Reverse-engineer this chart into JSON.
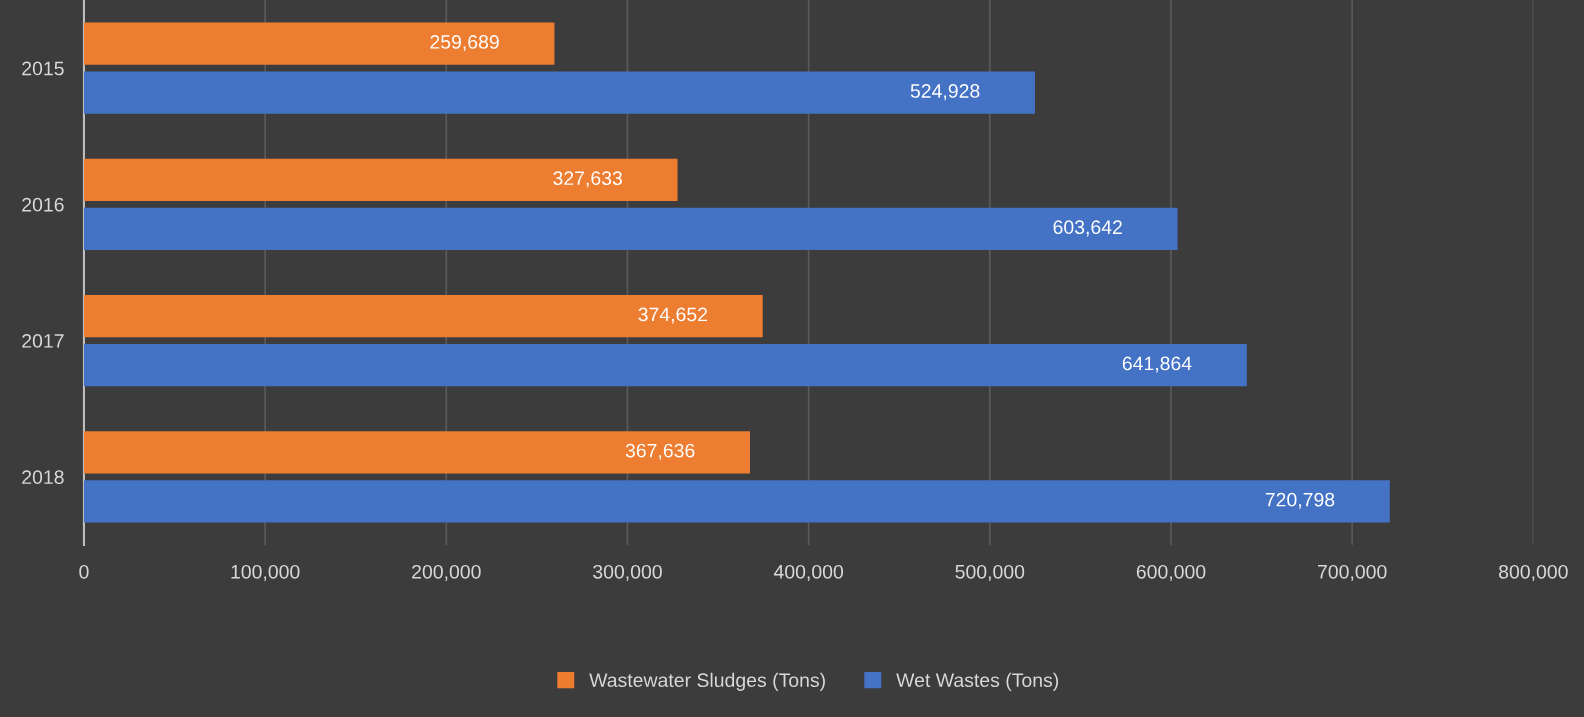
{
  "chart_data": {
    "type": "bar",
    "orientation": "horizontal",
    "categories": [
      "2015",
      "2016",
      "2017",
      "2018"
    ],
    "series": [
      {
        "name": "Wastewater Sludges (Tons)",
        "color": "#ed7d31",
        "values": [
          259689,
          327633,
          374652,
          367636
        ],
        "value_labels": [
          "259,689",
          "327,633",
          "374,652",
          "367,636"
        ]
      },
      {
        "name": "Wet Wastes (Tons)",
        "color": "#4472c4",
        "values": [
          524928,
          603642,
          641864,
          720798
        ],
        "value_labels": [
          "524,928",
          "603,642",
          "641,864",
          "720,798"
        ]
      }
    ],
    "xlim": [
      0,
      800000
    ],
    "xticks": [
      0,
      {
        "value": 100000,
        "label": "100,000"
      },
      {
        "value": 200000,
        "label": "200,000"
      },
      {
        "value": 300000,
        "label": "300,000"
      },
      {
        "value": 400000,
        "label": "400,000"
      },
      {
        "value": 500000,
        "label": "500,000"
      },
      {
        "value": 600000,
        "label": "600,000"
      },
      {
        "value": 700000,
        "label": "700,000"
      },
      {
        "value": 800000,
        "label": "800,000"
      }
    ],
    "grid": "x",
    "legend": "bottom"
  }
}
